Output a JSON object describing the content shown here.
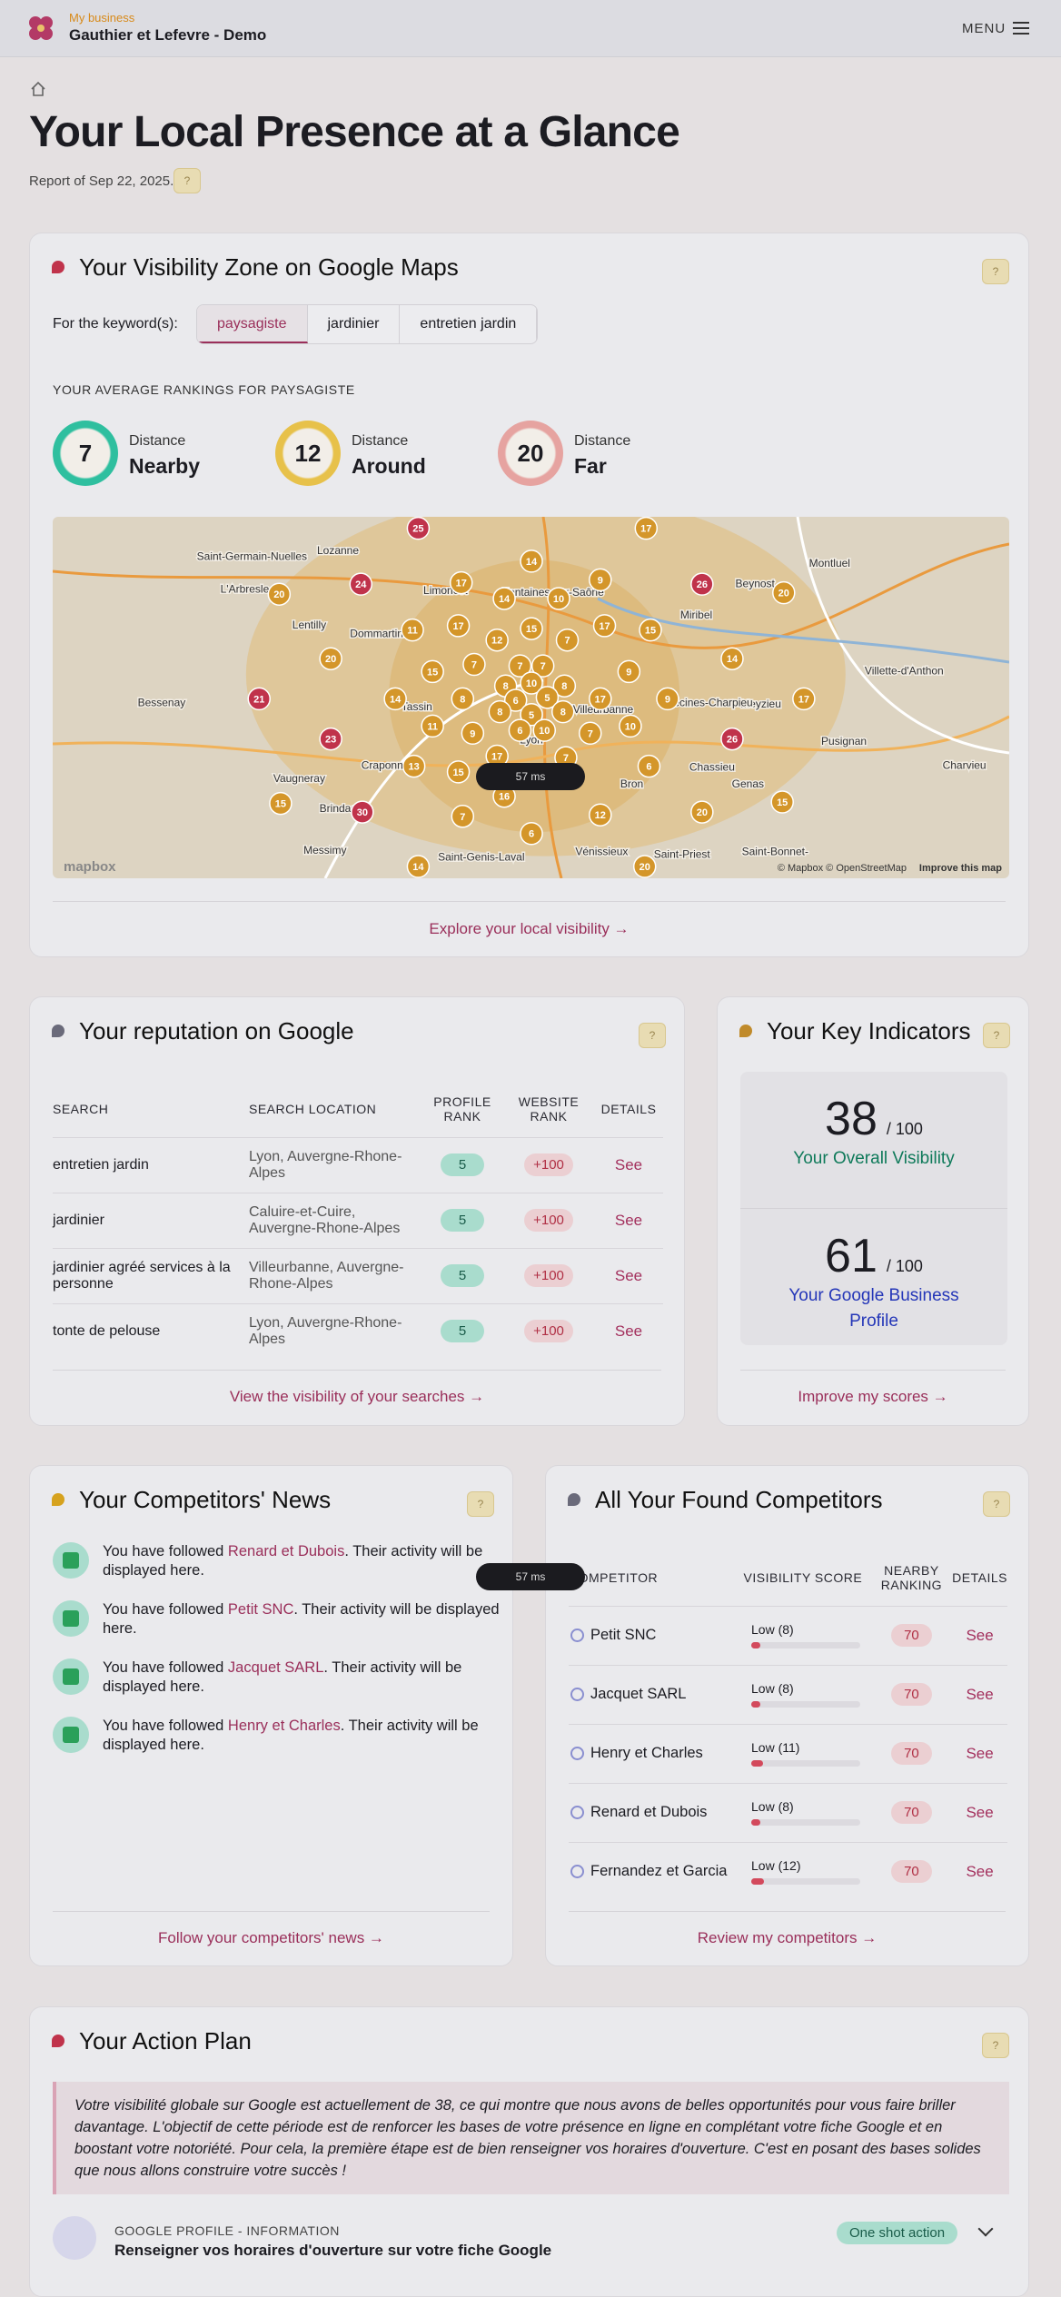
{
  "header": {
    "brand_label": "My business",
    "business": "Gauthier et Lefevre - Demo",
    "menu": "MENU"
  },
  "page": {
    "title": "Your Local Presence at a Glance",
    "report_date": "Report of Sep 22, 2025.",
    "help": "?"
  },
  "visibility": {
    "title": "Your Visibility Zone on Google Maps",
    "help": "?",
    "keyword_label": "For the keyword(s):",
    "keywords": [
      "paysagiste",
      "jardinier",
      "entretien jardin"
    ],
    "rankings_heading": "YOUR AVERAGE RANKINGS FOR PAYSAGISTE",
    "rankings": [
      {
        "value": 7,
        "label": "Distance",
        "zone": "Nearby",
        "color": "#2fbf9f"
      },
      {
        "value": 12,
        "label": "Distance",
        "zone": "Around",
        "color": "#e7c14a"
      },
      {
        "value": 20,
        "label": "Distance",
        "zone": "Far",
        "color": "#e6a3a0"
      }
    ],
    "map": {
      "places": [
        "Saint-Germain-Nuelles",
        "Lozanne",
        "L'Arbresle",
        "Lentilly",
        "Dommartin",
        "Limonest",
        "Fontaines-sur-Saône",
        "Miribel",
        "Beynost",
        "Montluel",
        "Villette-d'Anthon",
        "Meyzieu",
        "Décines-Charpieu",
        "Villeurbanne",
        "Lyon",
        "Vaugneray",
        "Craponne",
        "Chassieu",
        "Genas",
        "Pusignan",
        "Messimy",
        "Saint-Genis-Laval",
        "Vénissieux",
        "Saint-Priest",
        "Saint-Bonnet-",
        "Bron",
        "Bessenay",
        "Charvieu",
        "Brindas",
        "Tassin"
      ],
      "pins": [
        {
          "value": 25,
          "color": "#c0334b"
        },
        {
          "value": 17,
          "color": "#d4962a"
        },
        {
          "value": 14,
          "color": "#d4962a"
        },
        {
          "value": 24,
          "color": "#c0334b"
        },
        {
          "value": 17,
          "color": "#d4962a"
        },
        {
          "value": 9,
          "color": "#d4962a"
        },
        {
          "value": 26,
          "color": "#c0334b"
        },
        {
          "value": 20,
          "color": "#d4962a"
        },
        {
          "value": 14,
          "color": "#d4962a"
        },
        {
          "value": 10,
          "color": "#d4962a"
        },
        {
          "value": 20,
          "color": "#d4962a"
        },
        {
          "value": 11,
          "color": "#d4962a"
        },
        {
          "value": 17,
          "color": "#d4962a"
        },
        {
          "value": 15,
          "color": "#d4962a"
        },
        {
          "value": 17,
          "color": "#d4962a"
        },
        {
          "value": 15,
          "color": "#d4962a"
        },
        {
          "value": 12,
          "color": "#d4962a"
        },
        {
          "value": 7,
          "color": "#d4962a"
        },
        {
          "value": 20,
          "color": "#d4962a"
        },
        {
          "value": 14,
          "color": "#d4962a"
        },
        {
          "value": 15,
          "color": "#d4962a"
        },
        {
          "value": 7,
          "color": "#d4962a"
        },
        {
          "value": 7,
          "color": "#d4962a"
        },
        {
          "value": 7,
          "color": "#d4962a"
        },
        {
          "value": 10,
          "color": "#d4962a"
        },
        {
          "value": 8,
          "color": "#d4962a"
        },
        {
          "value": 9,
          "color": "#d4962a"
        },
        {
          "value": 8,
          "color": "#d4962a"
        },
        {
          "value": 6,
          "color": "#d4962a"
        },
        {
          "value": 5,
          "color": "#d4962a"
        },
        {
          "value": 21,
          "color": "#c0334b"
        },
        {
          "value": 14,
          "color": "#d4962a"
        },
        {
          "value": 8,
          "color": "#d4962a"
        },
        {
          "value": 9,
          "color": "#d4962a"
        },
        {
          "value": 17,
          "color": "#d4962a"
        },
        {
          "value": 17,
          "color": "#d4962a"
        },
        {
          "value": 8,
          "color": "#d4962a"
        },
        {
          "value": 5,
          "color": "#d4962a"
        },
        {
          "value": 8,
          "color": "#d4962a"
        },
        {
          "value": 11,
          "color": "#d4962a"
        },
        {
          "value": 9,
          "color": "#d4962a"
        },
        {
          "value": 6,
          "color": "#d4962a"
        },
        {
          "value": 10,
          "color": "#d4962a"
        },
        {
          "value": 7,
          "color": "#d4962a"
        },
        {
          "value": 10,
          "color": "#d4962a"
        },
        {
          "value": 26,
          "color": "#c0334b"
        },
        {
          "value": 23,
          "color": "#c0334b"
        },
        {
          "value": 17,
          "color": "#d4962a"
        },
        {
          "value": 13,
          "color": "#d4962a"
        },
        {
          "value": 7,
          "color": "#d4962a"
        },
        {
          "value": 15,
          "color": "#d4962a"
        },
        {
          "value": 6,
          "color": "#d4962a"
        },
        {
          "value": 16,
          "color": "#d4962a"
        },
        {
          "value": 12,
          "color": "#d4962a"
        },
        {
          "value": 20,
          "color": "#d4962a"
        },
        {
          "value": 15,
          "color": "#d4962a"
        },
        {
          "value": 30,
          "color": "#c0334b"
        },
        {
          "value": 7,
          "color": "#d4962a"
        },
        {
          "value": 6,
          "color": "#d4962a"
        },
        {
          "value": 15,
          "color": "#d4962a"
        },
        {
          "value": 14,
          "color": "#d4962a"
        },
        {
          "value": 20,
          "color": "#d4962a"
        }
      ],
      "logo": "mapbox",
      "attribution": "© Mapbox © OpenStreetMap",
      "improve": "Improve this map"
    },
    "link": "Explore your local visibility →"
  },
  "perf_badge": "57 ms",
  "reputation": {
    "title": "Your reputation on Google",
    "help": "?",
    "columns": [
      "SEARCH",
      "SEARCH LOCATION",
      "PROFILE RANK",
      "WEBSITE RANK",
      "DETAILS"
    ],
    "rows": [
      {
        "search": "entretien jardin",
        "location": "Lyon, Auvergne-Rhone-Alpes",
        "profile_rank": 5,
        "website_rank": "+100",
        "details": "See"
      },
      {
        "search": "jardinier",
        "location": "Caluire-et-Cuire, Auvergne-Rhone-Alpes",
        "profile_rank": 5,
        "website_rank": "+100",
        "details": "See"
      },
      {
        "search": "jardinier agréé services à la personne",
        "location": "Villeurbanne, Auvergne-Rhone-Alpes",
        "profile_rank": 5,
        "website_rank": "+100",
        "details": "See"
      },
      {
        "search": "tonte de pelouse",
        "location": "Lyon, Auvergne-Rhone-Alpes",
        "profile_rank": 5,
        "website_rank": "+100",
        "details": "See"
      }
    ],
    "link": "View the visibility of your searches →"
  },
  "indicators": {
    "title": "Your Key Indicators",
    "help": "?",
    "items": [
      {
        "score": 38,
        "out_of": "/ 100",
        "label": "Your Overall Visibility",
        "color": "#0f7a5a"
      },
      {
        "score": 61,
        "out_of": "/ 100",
        "label": "Your Google Business Profile",
        "color": "#2436b8"
      }
    ],
    "link": "Improve my scores →"
  },
  "news": {
    "title": "Your Competitors' News",
    "help": "?",
    "items": [
      {
        "before": "You have followed ",
        "name": "Renard et Dubois",
        "after": ". Their activity will be displayed here."
      },
      {
        "before": "You have followed ",
        "name": "Petit SNC",
        "after": ". Their activity will be displayed here."
      },
      {
        "before": "You have followed ",
        "name": "Jacquet SARL",
        "after": ". Their activity will be displayed here."
      },
      {
        "before": "You have followed ",
        "name": "Henry et Charles",
        "after": ". Their activity will be displayed here."
      }
    ],
    "link": "Follow your competitors' news →"
  },
  "competitors": {
    "title": "All Your Found Competitors",
    "help": "?",
    "columns": [
      "COMPETITOR",
      "VISIBILITY SCORE",
      "NEARBY RANKING",
      "DETAILS"
    ],
    "rows": [
      {
        "name": "Petit SNC",
        "visibility_label": "Low (8)",
        "visibility_score": 8,
        "nearby_ranking": 70,
        "details": "See"
      },
      {
        "name": "Jacquet SARL",
        "visibility_label": "Low (8)",
        "visibility_score": 8,
        "nearby_ranking": 70,
        "details": "See"
      },
      {
        "name": "Henry et Charles",
        "visibility_label": "Low (11)",
        "visibility_score": 11,
        "nearby_ranking": 70,
        "details": "See"
      },
      {
        "name": "Renard et Dubois",
        "visibility_label": "Low (8)",
        "visibility_score": 8,
        "nearby_ranking": 70,
        "details": "See"
      },
      {
        "name": "Fernandez et Garcia",
        "visibility_label": "Low (12)",
        "visibility_score": 12,
        "nearby_ranking": 70,
        "details": "See"
      }
    ],
    "link": "Review my competitors →"
  },
  "action_plan": {
    "title": "Your Action Plan",
    "help": "?",
    "quote": "Votre visibilité globale sur Google est actuellement de 38, ce qui montre que nous avons de belles opportunités pour vous faire briller davantage. L'objectif de cette période est de renforcer les bases de votre présence en ligne en complétant votre fiche Google et en boostant votre notoriété. Pour cela, la première étape est de bien renseigner vos horaires d'ouverture. C'est en posant des bases solides que nous allons construire votre succès !",
    "items": [
      {
        "category": "GOOGLE PROFILE - INFORMATION",
        "title": "Renseigner vos horaires d'ouverture sur votre fiche Google",
        "badge": "One shot action"
      }
    ]
  }
}
